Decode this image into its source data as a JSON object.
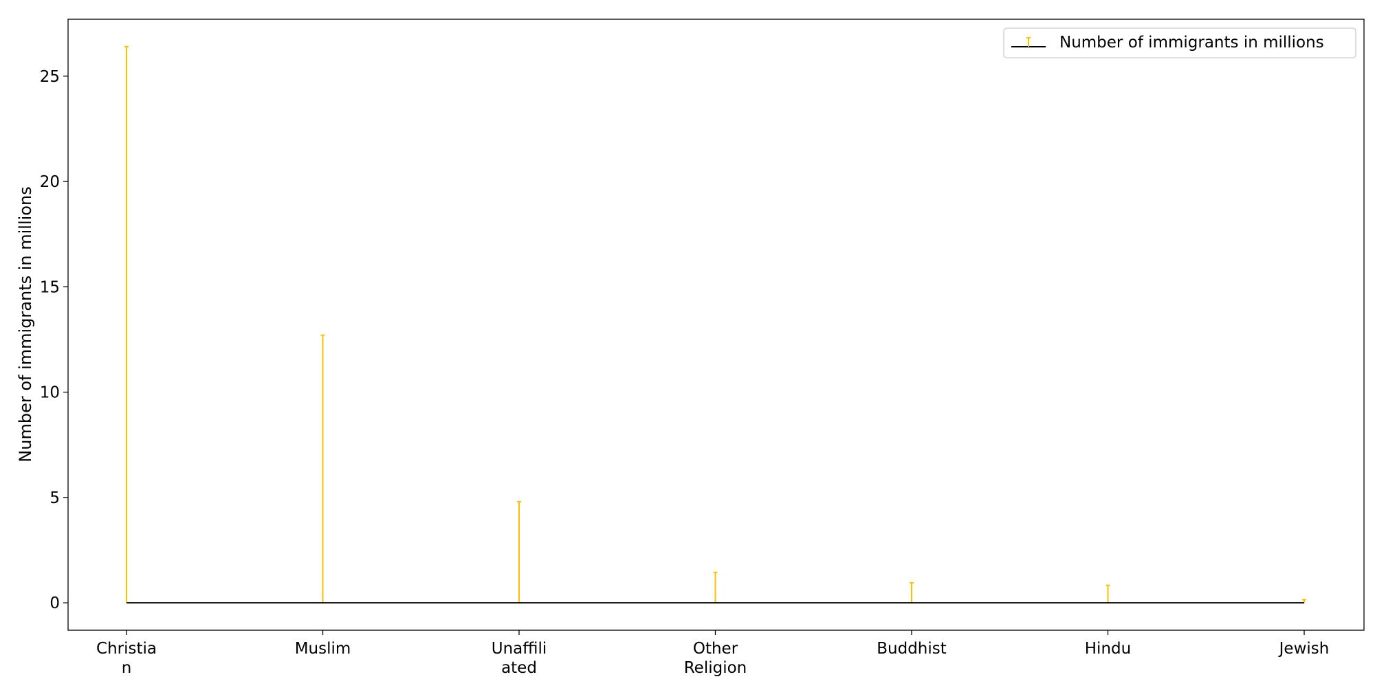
{
  "chart_data": {
    "type": "stem",
    "categories": [
      [
        "Christia",
        "n"
      ],
      [
        "Muslim"
      ],
      [
        "Unaffili",
        "ated"
      ],
      [
        "Other",
        "Religion"
      ],
      [
        "Buddhist"
      ],
      [
        "Hindu"
      ],
      [
        "Jewish"
      ]
    ],
    "series": [
      {
        "name": "Number of immigrants in millions",
        "values": [
          26.4,
          12.7,
          4.8,
          1.45,
          0.95,
          0.83,
          0.15
        ]
      }
    ],
    "title": "",
    "xlabel": "",
    "ylabel": "Number of immigrants in millions",
    "ylim": [
      -1.3,
      27.7
    ],
    "yticks": [
      0,
      5,
      10,
      15,
      20,
      25
    ],
    "legend_position": "top-right",
    "grid": false,
    "colors": {
      "stem": "#ffc000",
      "baseline": "#000000",
      "axes": "#000000"
    }
  }
}
